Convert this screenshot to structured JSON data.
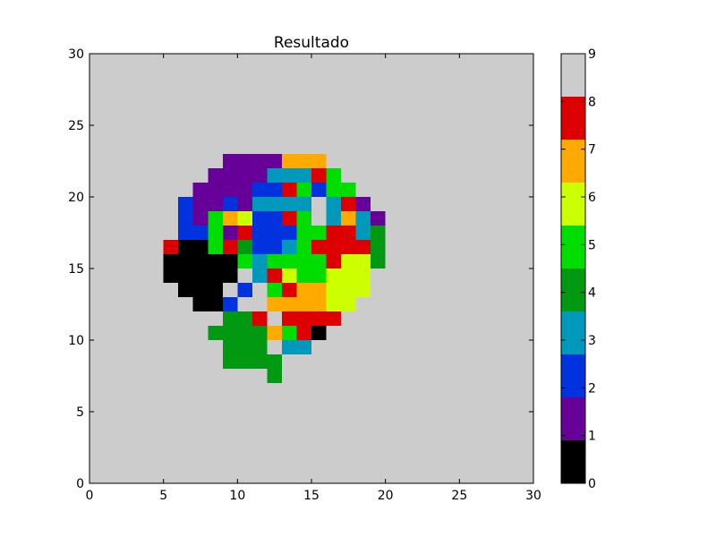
{
  "chart_data": {
    "type": "heatmap",
    "title": "Resultado",
    "xlabel": "",
    "ylabel": "",
    "xlim": [
      0,
      30
    ],
    "ylim": [
      0,
      30
    ],
    "x_ticks": [
      0,
      5,
      10,
      15,
      20,
      25,
      30
    ],
    "y_ticks": [
      0,
      5,
      10,
      15,
      20,
      25,
      30
    ],
    "x_tick_labels": [
      "0",
      "5",
      "10",
      "15",
      "20",
      "25",
      "30"
    ],
    "y_tick_labels": [
      "0",
      "5",
      "10",
      "15",
      "20",
      "25",
      "30"
    ],
    "grid": false,
    "background_value": 8.5,
    "colorbar": {
      "position": "right",
      "min": 0,
      "max": 9,
      "tick_labels": [
        "0",
        "1",
        "2",
        "3",
        "4",
        "5",
        "6",
        "7",
        "8",
        "9"
      ],
      "colors": [
        "#000000",
        "#660099",
        "#0033dd",
        "#0099bb",
        "#009911",
        "#00dd00",
        "#ccff00",
        "#ffaa00",
        "#dd0000",
        "#cccccc"
      ]
    },
    "rows": [
      {
        "y": 22,
        "cells": [
          [
            9,
            13,
            1
          ],
          [
            13,
            16,
            7
          ]
        ]
      },
      {
        "y": 21,
        "cells": [
          [
            8,
            12,
            1
          ],
          [
            12,
            15,
            3
          ],
          [
            15,
            16,
            8
          ],
          [
            16,
            17,
            5
          ]
        ]
      },
      {
        "y": 20,
        "cells": [
          [
            7,
            11,
            1
          ],
          [
            11,
            13,
            2
          ],
          [
            13,
            14,
            8
          ],
          [
            14,
            15,
            5
          ],
          [
            15,
            16,
            2
          ],
          [
            16,
            18,
            5
          ]
        ]
      },
      {
        "y": 19,
        "cells": [
          [
            6,
            7,
            2
          ],
          [
            7,
            9,
            1
          ],
          [
            9,
            10,
            2
          ],
          [
            10,
            11,
            1
          ],
          [
            11,
            15,
            3
          ],
          [
            16,
            17,
            3
          ],
          [
            17,
            18,
            8
          ],
          [
            18,
            19,
            1
          ]
        ]
      },
      {
        "y": 18,
        "cells": [
          [
            6,
            7,
            2
          ],
          [
            7,
            8,
            1
          ],
          [
            8,
            9,
            5
          ],
          [
            9,
            10,
            7
          ],
          [
            10,
            11,
            6
          ],
          [
            11,
            13,
            2
          ],
          [
            13,
            14,
            8
          ],
          [
            14,
            15,
            5
          ],
          [
            16,
            17,
            3
          ],
          [
            17,
            18,
            7
          ],
          [
            18,
            19,
            3
          ],
          [
            19,
            20,
            1
          ]
        ]
      },
      {
        "y": 17,
        "cells": [
          [
            6,
            8,
            2
          ],
          [
            8,
            9,
            5
          ],
          [
            9,
            10,
            1
          ],
          [
            10,
            11,
            8
          ],
          [
            11,
            14,
            2
          ],
          [
            14,
            16,
            5
          ],
          [
            16,
            18,
            8
          ],
          [
            18,
            19,
            3
          ],
          [
            19,
            20,
            4
          ]
        ]
      },
      {
        "y": 16,
        "cells": [
          [
            5,
            6,
            8
          ],
          [
            6,
            8,
            0
          ],
          [
            8,
            9,
            5
          ],
          [
            9,
            10,
            8
          ],
          [
            10,
            11,
            4
          ],
          [
            11,
            13,
            2
          ],
          [
            13,
            14,
            3
          ],
          [
            14,
            15,
            5
          ],
          [
            15,
            19,
            8
          ],
          [
            19,
            20,
            4
          ]
        ]
      },
      {
        "y": 15,
        "cells": [
          [
            5,
            10,
            0
          ],
          [
            10,
            11,
            5
          ],
          [
            11,
            12,
            3
          ],
          [
            12,
            16,
            5
          ],
          [
            16,
            17,
            8
          ],
          [
            17,
            19,
            6
          ],
          [
            19,
            20,
            4
          ]
        ]
      },
      {
        "y": 14,
        "cells": [
          [
            5,
            10,
            0
          ],
          [
            11,
            12,
            3
          ],
          [
            12,
            13,
            8
          ],
          [
            13,
            14,
            6
          ],
          [
            14,
            16,
            5
          ],
          [
            16,
            19,
            6
          ]
        ]
      },
      {
        "y": 13,
        "cells": [
          [
            6,
            9,
            0
          ],
          [
            10,
            11,
            2
          ],
          [
            12,
            13,
            5
          ],
          [
            13,
            14,
            8
          ],
          [
            14,
            16,
            7
          ],
          [
            16,
            19,
            6
          ]
        ]
      },
      {
        "y": 12,
        "cells": [
          [
            7,
            9,
            0
          ],
          [
            9,
            10,
            2
          ],
          [
            12,
            16,
            7
          ],
          [
            16,
            18,
            6
          ]
        ]
      },
      {
        "y": 11,
        "cells": [
          [
            9,
            11,
            4
          ],
          [
            11,
            12,
            8
          ],
          [
            13,
            17,
            8
          ]
        ]
      },
      {
        "y": 10,
        "cells": [
          [
            8,
            12,
            4
          ],
          [
            12,
            13,
            7
          ],
          [
            13,
            14,
            5
          ],
          [
            14,
            15,
            8
          ],
          [
            15,
            16,
            0
          ]
        ]
      },
      {
        "y": 9,
        "cells": [
          [
            9,
            12,
            4
          ],
          [
            13,
            15,
            3
          ]
        ]
      },
      {
        "y": 8,
        "cells": [
          [
            9,
            13,
            4
          ]
        ]
      },
      {
        "y": 7,
        "cells": [
          [
            12,
            13,
            4
          ]
        ]
      }
    ]
  }
}
